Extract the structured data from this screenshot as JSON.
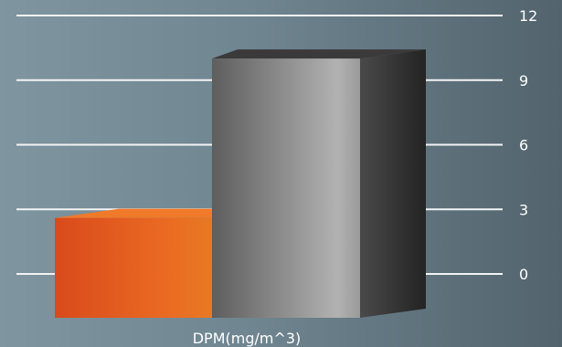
{
  "chart_data": {
    "type": "bar",
    "title": "",
    "xlabel": "DPM(mg/m^3)",
    "ylabel": "",
    "categories": [
      ""
    ],
    "series": [
      {
        "values": [
          2.6
        ],
        "color": "#e35a1e"
      },
      {
        "values": [
          10.0
        ],
        "color": "#8a8a8a"
      }
    ],
    "ylim": [
      0,
      12
    ],
    "yticks": [
      "0",
      "3",
      "6",
      "9",
      "12"
    ],
    "grid": true,
    "legend": "none"
  }
}
